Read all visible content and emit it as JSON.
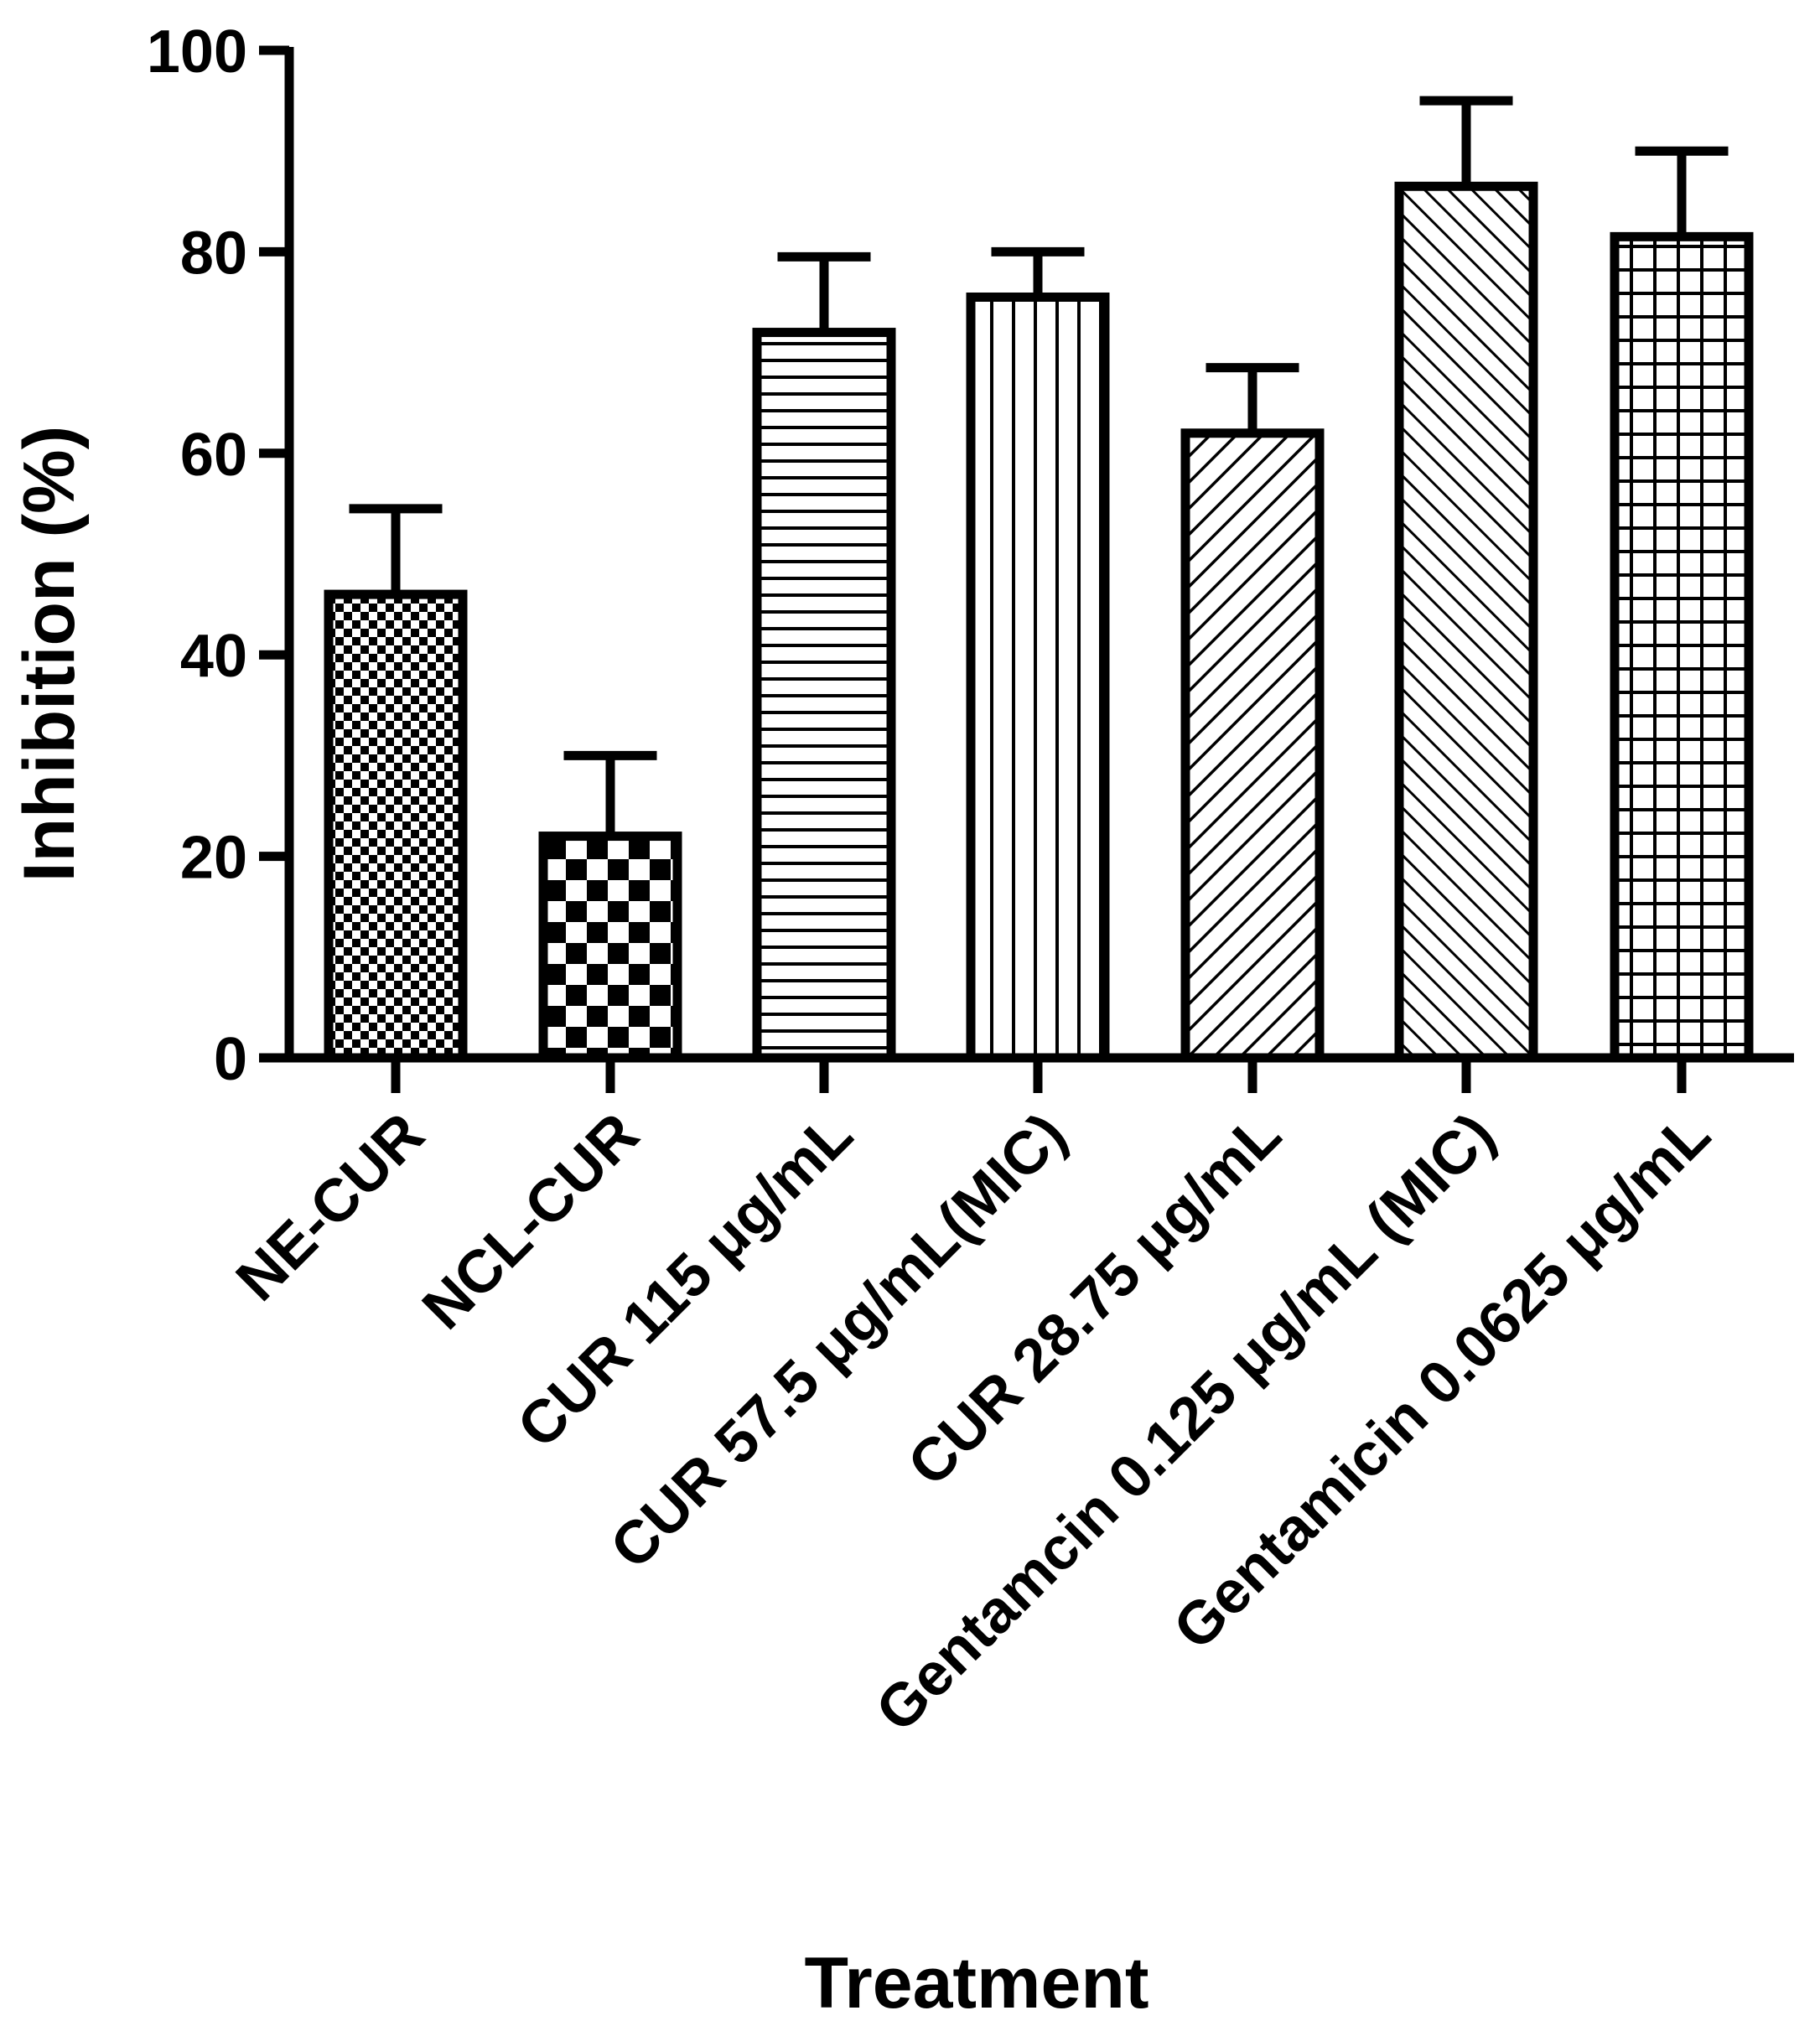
{
  "chart_data": {
    "type": "bar",
    "xlabel": "Treatment",
    "ylabel": "Inhibition (%)",
    "ylim": [
      0,
      100
    ],
    "yticks": [
      0,
      20,
      40,
      60,
      80,
      100
    ],
    "grid": false,
    "categories": [
      "NE-CUR",
      "NCL-CUR",
      "CUR 115 μg/mL",
      "CUR 57.5 μg/mL(MIC)",
      "CUR 28.75 μg/mL",
      "Gentamcin 0.125 μg/mL (MIC)",
      "Gentamicin 0.0625 μg/mL"
    ],
    "values": [
      46,
      22,
      72,
      75.5,
      62,
      86.5,
      81.5
    ],
    "error_upper": [
      8.5,
      8,
      7.5,
      4.5,
      6.5,
      8.5,
      8.5
    ],
    "patterns": [
      "fine-checker",
      "coarse-checker",
      "horizontal-lines",
      "vertical-lines",
      "diagonal-up",
      "diagonal-down",
      "grid"
    ],
    "colors": {
      "fill": "#ffffff",
      "stroke": "#000000"
    }
  }
}
